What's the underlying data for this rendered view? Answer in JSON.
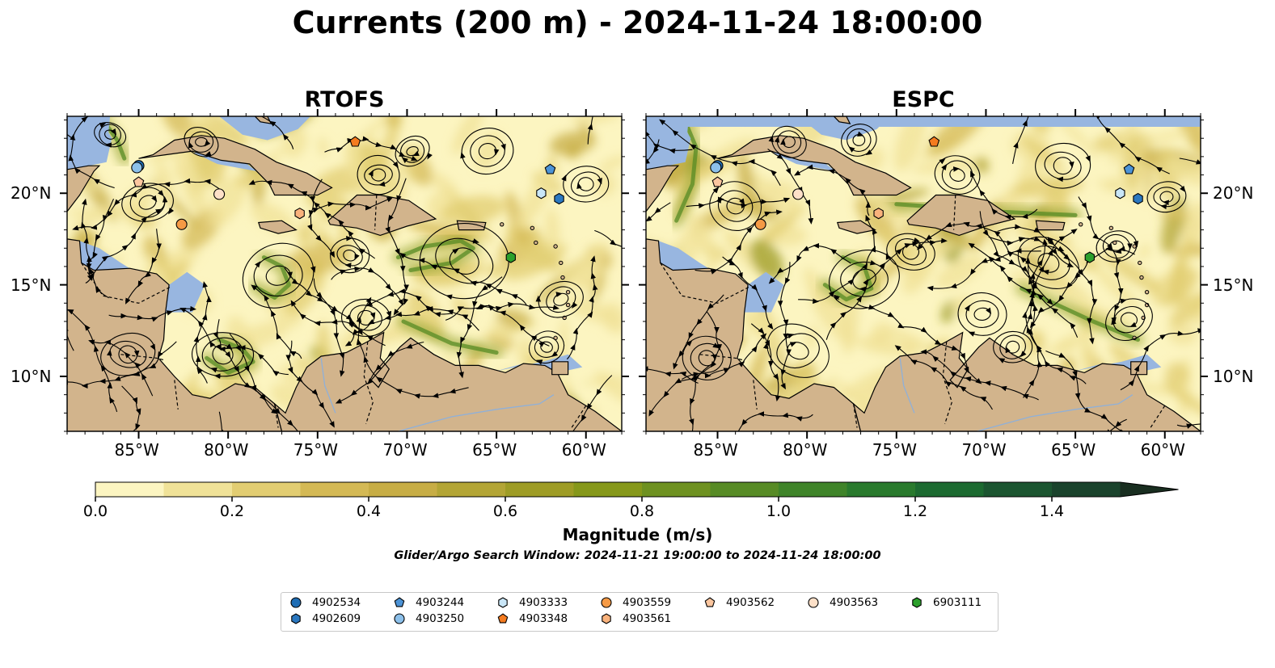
{
  "title": "Currents (200 m) - 2024-11-24 18:00:00",
  "panels": [
    {
      "title": "RTOFS"
    },
    {
      "title": "ESPC"
    }
  ],
  "map_extent": {
    "lon": [
      -89,
      -58
    ],
    "lat": [
      7,
      24.2
    ]
  },
  "x_ticks": [
    "85°W",
    "80°W",
    "75°W",
    "70°W",
    "65°W",
    "60°W"
  ],
  "x_tick_values": [
    -85,
    -80,
    -75,
    -70,
    -65,
    -60
  ],
  "y_ticks": [
    "20°N",
    "15°N",
    "10°N"
  ],
  "y_tick_values": [
    20,
    15,
    10
  ],
  "colorbar": {
    "label": "Magnitude (m/s)",
    "ticks": [
      "0.0",
      "0.2",
      "0.4",
      "0.6",
      "0.8",
      "1.0",
      "1.2",
      "1.4"
    ],
    "tick_values": [
      0.0,
      0.2,
      0.4,
      0.6,
      0.8,
      1.0,
      1.2,
      1.4
    ],
    "range": [
      0,
      1.5
    ],
    "extend": "max",
    "colors": [
      "#fcf5c1",
      "#f0e298",
      "#e2cd72",
      "#d4b955",
      "#c7ad45",
      "#b3a535",
      "#9e9c25",
      "#86981a",
      "#6e9120",
      "#578b25",
      "#3f8429",
      "#297a2d",
      "#1c6a30",
      "#1b5530",
      "#1a432c",
      "#192e20"
    ]
  },
  "search_window": "Glider/Argo Search Window: 2024-11-21 19:00:00 to 2024-11-24 18:00:00",
  "colors": {
    "land": "#d2b48c",
    "shallow": "#98b6e0",
    "ocean_low": "#fcf5c1"
  },
  "floats": [
    {
      "id": "4902534",
      "marker": "circle",
      "color": "#1f6db4",
      "lon": -85.0,
      "lat": 21.5
    },
    {
      "id": "4902609",
      "marker": "hexagon",
      "color": "#2b78c0",
      "lon": -61.5,
      "lat": 19.7
    },
    {
      "id": "4903244",
      "marker": "pentagon",
      "color": "#4c93d6",
      "lon": -62.0,
      "lat": 21.3
    },
    {
      "id": "4903250",
      "marker": "circle",
      "color": "#8cc0ea",
      "lon": -85.1,
      "lat": 21.4
    },
    {
      "id": "4903333",
      "marker": "hexagon",
      "color": "#c9e6f7",
      "lon": -62.5,
      "lat": 20.0
    },
    {
      "id": "4903348",
      "marker": "pentagon",
      "color": "#f47b1f",
      "lon": -72.9,
      "lat": 22.8
    },
    {
      "id": "4903559",
      "marker": "circle",
      "color": "#f59a45",
      "lon": -82.6,
      "lat": 18.3
    },
    {
      "id": "4903561",
      "marker": "hexagon",
      "color": "#f9b27c",
      "lon": -76.0,
      "lat": 18.9
    },
    {
      "id": "4903562",
      "marker": "pentagon",
      "color": "#fbc69f",
      "lon": -85.0,
      "lat": 20.6
    },
    {
      "id": "4903563",
      "marker": "circle",
      "color": "#fde0c8",
      "lon": -80.5,
      "lat": 19.95
    },
    {
      "id": "6903111",
      "marker": "hexagon",
      "color": "#2ca02c",
      "lon": -64.2,
      "lat": 16.5
    }
  ]
}
